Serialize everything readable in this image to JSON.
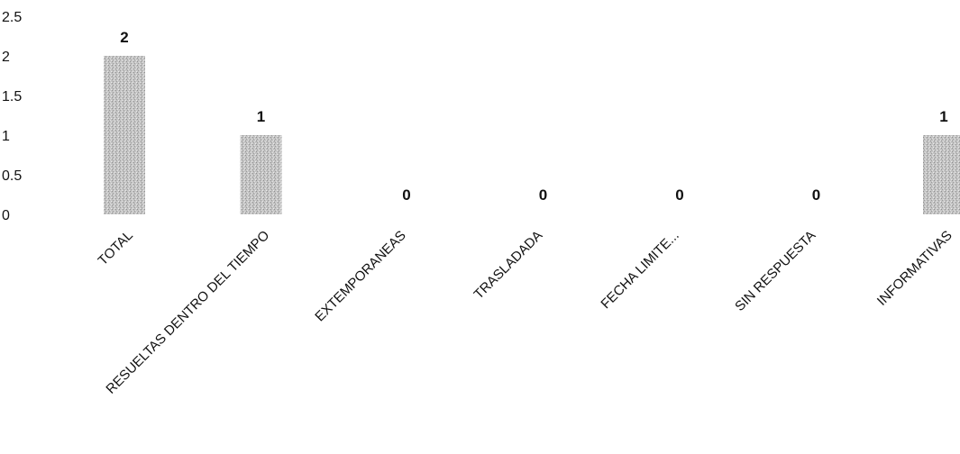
{
  "chart_data": {
    "type": "bar",
    "title": "",
    "xlabel": "",
    "ylabel": "",
    "categories": [
      "TOTAL",
      "RESUELTAS DENTRO DEL TIEMPO",
      "EXTEMPORANEAS",
      "TRASLADADA",
      "FECHA LIMITE...",
      "SIN RESPUESTA",
      "INFORMATIVAS"
    ],
    "values": [
      2,
      1,
      0,
      0,
      0,
      0,
      1
    ],
    "data_labels": [
      "2",
      "1",
      "0",
      "0",
      "0",
      "0",
      "1"
    ],
    "ylim": [
      0,
      2.5
    ],
    "yticks": [
      "0",
      "0.5",
      "1",
      "1.5",
      "2",
      "2.5"
    ],
    "grid": false,
    "legend": "none",
    "bar_color": "#b9b9b9"
  }
}
